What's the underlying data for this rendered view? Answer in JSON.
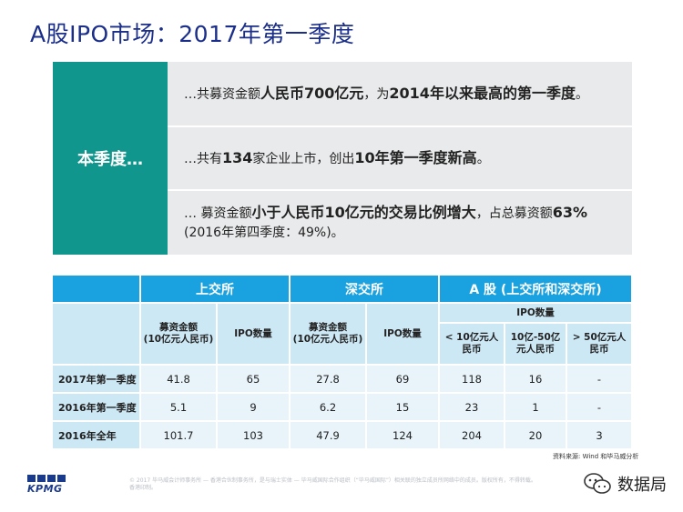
{
  "title": "A股IPO市场：2017年第一季度",
  "summary": {
    "tag": "本季度…",
    "row1": {
      "pre": "…共募资金额",
      "b1": "人民币700亿元",
      "mid": "，为",
      "b2": "2014年以来最高的第一季度",
      "post": "。"
    },
    "row2": {
      "pre": "…共有",
      "b1": "134",
      "mid": "家企业上市，创出",
      "b2": "10年第一季度新高",
      "post": "。"
    },
    "row3": {
      "pre": "… 募资金额",
      "b1": "小于人民币10亿元的交易比例增大",
      "mid": "，占总募资额",
      "b2": "63%",
      "post": " (2016年第四季度：49%)。"
    }
  },
  "table": {
    "groups": [
      "上交所",
      "深交所",
      "A 股 (上交所和深交所)"
    ],
    "ipo_count_header": "IPO数量",
    "sub_headers": [
      "募资金额\n(10亿元人民币)",
      "IPO数量",
      "募资金额\n(10亿元人民币)",
      "IPO数量",
      "< 10亿元人民币",
      "10亿-50亿元人民币",
      "> 50亿元人民币"
    ],
    "rows": [
      {
        "label": "2017年第一季度",
        "cells": [
          "41.8",
          "65",
          "27.8",
          "69",
          "118",
          "16",
          "-"
        ]
      },
      {
        "label": "2016年第一季度",
        "cells": [
          "5.1",
          "9",
          "6.2",
          "15",
          "23",
          "1",
          "-"
        ]
      },
      {
        "label": "2016年全年",
        "cells": [
          "101.7",
          "103",
          "47.9",
          "124",
          "204",
          "20",
          "3"
        ]
      }
    ]
  },
  "source": "资料来源: Wind 和毕马威分析",
  "footer_note": "© 2017 毕马威会计师事务所 — 香港合伙制事务所，是与瑞士实体 — 毕马威国际合作组织（“毕马威国际”）相关联的独立成员所网络中的成员。版权所有，不得转载。香港印制。",
  "logo_text": "KPMG",
  "brand": "数据局",
  "colors": {
    "title": "#1a2e8a",
    "teal": "#10968c",
    "header_blue": "#1aa2e0",
    "light_blue": "#cde8f5",
    "cell_blue": "#e8f4fa",
    "panel_grey": "#e9eaeb"
  }
}
